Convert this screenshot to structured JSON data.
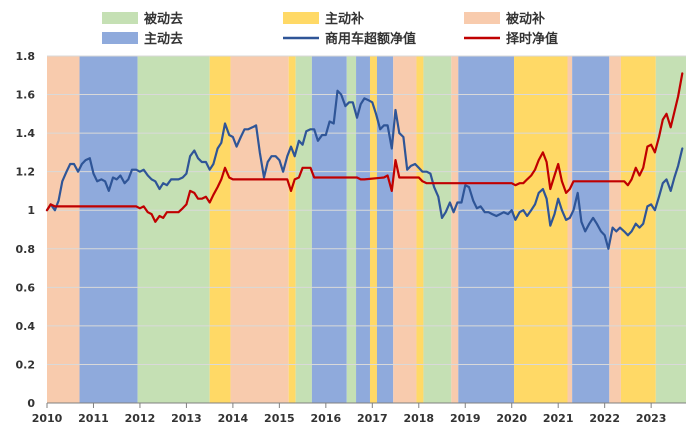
{
  "chart_data": {
    "type": "line",
    "title": "",
    "xlabel": "",
    "ylabel": "",
    "ylim": [
      0,
      1.8
    ],
    "xlim": [
      2010.0,
      2023.75
    ],
    "y_ticks": [
      "0",
      "0.2",
      "0.4",
      "0.6",
      "0.8",
      "1",
      "1.2",
      "1.4",
      "1.6",
      "1.8"
    ],
    "x_ticks": [
      "2010",
      "2011",
      "2012",
      "2013",
      "2014",
      "2015",
      "2016",
      "2017",
      "2018",
      "2019",
      "2020",
      "2021",
      "2022",
      "2023"
    ],
    "grid": true,
    "legend": [
      {
        "label": "被动去",
        "kind": "area",
        "color": "#c5e0b4"
      },
      {
        "label": "主动补",
        "kind": "area",
        "color": "#ffd966"
      },
      {
        "label": "被动补",
        "kind": "area",
        "color": "#f8cbad"
      },
      {
        "label": "主动去",
        "kind": "area",
        "color": "#8faadc"
      },
      {
        "label": "商用车超额净值",
        "kind": "line",
        "color": "#2f5597"
      },
      {
        "label": "择时净值",
        "kind": "line",
        "color": "#c00000"
      }
    ],
    "phases": [
      {
        "phase": "被动补",
        "start": 2010.0,
        "end": 2010.7
      },
      {
        "phase": "主动去",
        "start": 2010.7,
        "end": 2011.95
      },
      {
        "phase": "被动去",
        "start": 2011.95,
        "end": 2013.5
      },
      {
        "phase": "主动补",
        "start": 2013.5,
        "end": 2013.95
      },
      {
        "phase": "被动补",
        "start": 2013.95,
        "end": 2015.2
      },
      {
        "phase": "主动补",
        "start": 2015.2,
        "end": 2015.35
      },
      {
        "phase": "被动去",
        "start": 2015.35,
        "end": 2015.7
      },
      {
        "phase": "主动去",
        "start": 2015.7,
        "end": 2016.45
      },
      {
        "phase": "被动去",
        "start": 2016.45,
        "end": 2016.65
      },
      {
        "phase": "主动去",
        "start": 2016.65,
        "end": 2016.95
      },
      {
        "phase": "主动补",
        "start": 2016.95,
        "end": 2017.1
      },
      {
        "phase": "主动去",
        "start": 2017.1,
        "end": 2017.45
      },
      {
        "phase": "被动补",
        "start": 2017.45,
        "end": 2017.95
      },
      {
        "phase": "主动补",
        "start": 2017.95,
        "end": 2018.1
      },
      {
        "phase": "被动去",
        "start": 2018.1,
        "end": 2018.7
      },
      {
        "phase": "被动补",
        "start": 2018.7,
        "end": 2018.85
      },
      {
        "phase": "主动去",
        "start": 2018.85,
        "end": 2020.05
      },
      {
        "phase": "主动补",
        "start": 2020.05,
        "end": 2021.2
      },
      {
        "phase": "被动补",
        "start": 2021.2,
        "end": 2021.3
      },
      {
        "phase": "主动去",
        "start": 2021.3,
        "end": 2022.1
      },
      {
        "phase": "被动补",
        "start": 2022.1,
        "end": 2022.35
      },
      {
        "phase": "主动补",
        "start": 2022.35,
        "end": 2023.1
      },
      {
        "phase": "被动去",
        "start": 2023.1,
        "end": 2023.75
      }
    ],
    "series": [
      {
        "name": "商用车超额净值",
        "color": "#2f5597",
        "points": [
          [
            2010.0,
            1.0
          ],
          [
            2010.08,
            1.03
          ],
          [
            2010.17,
            1.0
          ],
          [
            2010.25,
            1.05
          ],
          [
            2010.33,
            1.15
          ],
          [
            2010.42,
            1.2
          ],
          [
            2010.5,
            1.24
          ],
          [
            2010.58,
            1.24
          ],
          [
            2010.67,
            1.2
          ],
          [
            2010.75,
            1.24
          ],
          [
            2010.83,
            1.26
          ],
          [
            2010.92,
            1.27
          ],
          [
            2011.0,
            1.19
          ],
          [
            2011.08,
            1.15
          ],
          [
            2011.17,
            1.16
          ],
          [
            2011.25,
            1.15
          ],
          [
            2011.33,
            1.1
          ],
          [
            2011.42,
            1.17
          ],
          [
            2011.5,
            1.16
          ],
          [
            2011.58,
            1.18
          ],
          [
            2011.67,
            1.14
          ],
          [
            2011.75,
            1.16
          ],
          [
            2011.83,
            1.21
          ],
          [
            2011.92,
            1.21
          ],
          [
            2012.0,
            1.2
          ],
          [
            2012.08,
            1.21
          ],
          [
            2012.17,
            1.18
          ],
          [
            2012.25,
            1.16
          ],
          [
            2012.33,
            1.15
          ],
          [
            2012.42,
            1.11
          ],
          [
            2012.5,
            1.14
          ],
          [
            2012.58,
            1.13
          ],
          [
            2012.67,
            1.16
          ],
          [
            2012.75,
            1.16
          ],
          [
            2012.83,
            1.16
          ],
          [
            2012.92,
            1.17
          ],
          [
            2013.0,
            1.19
          ],
          [
            2013.08,
            1.28
          ],
          [
            2013.17,
            1.31
          ],
          [
            2013.25,
            1.27
          ],
          [
            2013.33,
            1.25
          ],
          [
            2013.42,
            1.25
          ],
          [
            2013.5,
            1.21
          ],
          [
            2013.58,
            1.24
          ],
          [
            2013.67,
            1.32
          ],
          [
            2013.75,
            1.35
          ],
          [
            2013.83,
            1.45
          ],
          [
            2013.92,
            1.39
          ],
          [
            2014.0,
            1.38
          ],
          [
            2014.08,
            1.33
          ],
          [
            2014.17,
            1.38
          ],
          [
            2014.25,
            1.42
          ],
          [
            2014.33,
            1.42
          ],
          [
            2014.42,
            1.43
          ],
          [
            2014.5,
            1.44
          ],
          [
            2014.58,
            1.3
          ],
          [
            2014.67,
            1.17
          ],
          [
            2014.75,
            1.25
          ],
          [
            2014.83,
            1.28
          ],
          [
            2014.92,
            1.28
          ],
          [
            2015.0,
            1.26
          ],
          [
            2015.08,
            1.2
          ],
          [
            2015.17,
            1.28
          ],
          [
            2015.25,
            1.33
          ],
          [
            2015.33,
            1.28
          ],
          [
            2015.42,
            1.36
          ],
          [
            2015.5,
            1.34
          ],
          [
            2015.58,
            1.41
          ],
          [
            2015.67,
            1.42
          ],
          [
            2015.75,
            1.42
          ],
          [
            2015.83,
            1.36
          ],
          [
            2015.92,
            1.39
          ],
          [
            2016.0,
            1.39
          ],
          [
            2016.08,
            1.46
          ],
          [
            2016.17,
            1.45
          ],
          [
            2016.25,
            1.62
          ],
          [
            2016.33,
            1.6
          ],
          [
            2016.42,
            1.54
          ],
          [
            2016.5,
            1.56
          ],
          [
            2016.58,
            1.56
          ],
          [
            2016.67,
            1.48
          ],
          [
            2016.75,
            1.55
          ],
          [
            2016.83,
            1.58
          ],
          [
            2016.92,
            1.57
          ],
          [
            2017.0,
            1.56
          ],
          [
            2017.08,
            1.5
          ],
          [
            2017.17,
            1.42
          ],
          [
            2017.25,
            1.44
          ],
          [
            2017.33,
            1.44
          ],
          [
            2017.42,
            1.32
          ],
          [
            2017.5,
            1.52
          ],
          [
            2017.58,
            1.4
          ],
          [
            2017.67,
            1.38
          ],
          [
            2017.75,
            1.21
          ],
          [
            2017.83,
            1.23
          ],
          [
            2017.92,
            1.24
          ],
          [
            2018.0,
            1.22
          ],
          [
            2018.08,
            1.2
          ],
          [
            2018.17,
            1.2
          ],
          [
            2018.25,
            1.19
          ],
          [
            2018.33,
            1.12
          ],
          [
            2018.42,
            1.07
          ],
          [
            2018.5,
            0.96
          ],
          [
            2018.58,
            0.99
          ],
          [
            2018.67,
            1.04
          ],
          [
            2018.75,
            0.99
          ],
          [
            2018.83,
            1.04
          ],
          [
            2018.92,
            1.04
          ],
          [
            2019.0,
            1.13
          ],
          [
            2019.08,
            1.12
          ],
          [
            2019.17,
            1.05
          ],
          [
            2019.25,
            1.01
          ],
          [
            2019.33,
            1.02
          ],
          [
            2019.42,
            0.99
          ],
          [
            2019.5,
            0.99
          ],
          [
            2019.58,
            0.98
          ],
          [
            2019.67,
            0.97
          ],
          [
            2019.75,
            0.98
          ],
          [
            2019.83,
            0.99
          ],
          [
            2019.92,
            0.98
          ],
          [
            2020.0,
            1.0
          ],
          [
            2020.08,
            0.95
          ],
          [
            2020.17,
            0.99
          ],
          [
            2020.25,
            1.0
          ],
          [
            2020.33,
            0.97
          ],
          [
            2020.42,
            1.0
          ],
          [
            2020.5,
            1.03
          ],
          [
            2020.58,
            1.09
          ],
          [
            2020.67,
            1.11
          ],
          [
            2020.75,
            1.06
          ],
          [
            2020.83,
            0.92
          ],
          [
            2020.92,
            0.98
          ],
          [
            2021.0,
            1.06
          ],
          [
            2021.08,
            1.0
          ],
          [
            2021.17,
            0.95
          ],
          [
            2021.25,
            0.96
          ],
          [
            2021.33,
            1.0
          ],
          [
            2021.42,
            1.09
          ],
          [
            2021.5,
            0.94
          ],
          [
            2021.58,
            0.89
          ],
          [
            2021.67,
            0.93
          ],
          [
            2021.75,
            0.96
          ],
          [
            2021.83,
            0.93
          ],
          [
            2021.92,
            0.89
          ],
          [
            2022.0,
            0.87
          ],
          [
            2022.08,
            0.8
          ],
          [
            2022.17,
            0.91
          ],
          [
            2022.25,
            0.89
          ],
          [
            2022.33,
            0.91
          ],
          [
            2022.42,
            0.89
          ],
          [
            2022.5,
            0.87
          ],
          [
            2022.58,
            0.89
          ],
          [
            2022.67,
            0.93
          ],
          [
            2022.75,
            0.91
          ],
          [
            2022.83,
            0.93
          ],
          [
            2022.92,
            1.02
          ],
          [
            2023.0,
            1.03
          ],
          [
            2023.08,
            1.0
          ],
          [
            2023.17,
            1.07
          ],
          [
            2023.25,
            1.14
          ],
          [
            2023.33,
            1.16
          ],
          [
            2023.42,
            1.1
          ],
          [
            2023.5,
            1.17
          ],
          [
            2023.58,
            1.23
          ],
          [
            2023.67,
            1.32
          ]
        ]
      },
      {
        "name": "择时净值",
        "color": "#c00000",
        "points": [
          [
            2010.0,
            1.0
          ],
          [
            2010.08,
            1.03
          ],
          [
            2010.17,
            1.02
          ],
          [
            2011.92,
            1.02
          ],
          [
            2012.0,
            1.01
          ],
          [
            2012.08,
            1.02
          ],
          [
            2012.17,
            0.99
          ],
          [
            2012.25,
            0.98
          ],
          [
            2012.33,
            0.94
          ],
          [
            2012.42,
            0.97
          ],
          [
            2012.5,
            0.96
          ],
          [
            2012.58,
            0.99
          ],
          [
            2012.67,
            0.99
          ],
          [
            2012.75,
            0.99
          ],
          [
            2012.83,
            0.99
          ],
          [
            2012.92,
            1.01
          ],
          [
            2013.0,
            1.03
          ],
          [
            2013.08,
            1.1
          ],
          [
            2013.17,
            1.09
          ],
          [
            2013.25,
            1.06
          ],
          [
            2013.33,
            1.06
          ],
          [
            2013.42,
            1.07
          ],
          [
            2013.5,
            1.04
          ],
          [
            2013.58,
            1.08
          ],
          [
            2013.67,
            1.12
          ],
          [
            2013.75,
            1.16
          ],
          [
            2013.83,
            1.22
          ],
          [
            2013.92,
            1.17
          ],
          [
            2014.0,
            1.16
          ],
          [
            2015.17,
            1.16
          ],
          [
            2015.25,
            1.1
          ],
          [
            2015.33,
            1.16
          ],
          [
            2015.42,
            1.17
          ],
          [
            2015.5,
            1.22
          ],
          [
            2015.58,
            1.22
          ],
          [
            2015.67,
            1.22
          ],
          [
            2015.75,
            1.17
          ],
          [
            2016.67,
            1.17
          ],
          [
            2016.75,
            1.16
          ],
          [
            2016.83,
            1.16
          ],
          [
            2017.25,
            1.17
          ],
          [
            2017.33,
            1.18
          ],
          [
            2017.42,
            1.1
          ],
          [
            2017.5,
            1.26
          ],
          [
            2017.58,
            1.17
          ],
          [
            2017.67,
            1.17
          ],
          [
            2018.0,
            1.17
          ],
          [
            2018.08,
            1.15
          ],
          [
            2018.17,
            1.14
          ],
          [
            2020.0,
            1.14
          ],
          [
            2020.08,
            1.13
          ],
          [
            2020.17,
            1.14
          ],
          [
            2020.25,
            1.14
          ],
          [
            2020.33,
            1.16
          ],
          [
            2020.42,
            1.18
          ],
          [
            2020.5,
            1.21
          ],
          [
            2020.58,
            1.26
          ],
          [
            2020.67,
            1.3
          ],
          [
            2020.75,
            1.25
          ],
          [
            2020.83,
            1.11
          ],
          [
            2020.92,
            1.18
          ],
          [
            2021.0,
            1.24
          ],
          [
            2021.08,
            1.15
          ],
          [
            2021.17,
            1.09
          ],
          [
            2021.25,
            1.11
          ],
          [
            2021.33,
            1.15
          ],
          [
            2022.33,
            1.15
          ],
          [
            2022.42,
            1.15
          ],
          [
            2022.5,
            1.13
          ],
          [
            2022.58,
            1.16
          ],
          [
            2022.67,
            1.22
          ],
          [
            2022.75,
            1.18
          ],
          [
            2022.83,
            1.22
          ],
          [
            2022.92,
            1.33
          ],
          [
            2023.0,
            1.34
          ],
          [
            2023.08,
            1.3
          ],
          [
            2023.17,
            1.38
          ],
          [
            2023.25,
            1.47
          ],
          [
            2023.33,
            1.5
          ],
          [
            2023.42,
            1.43
          ],
          [
            2023.5,
            1.51
          ],
          [
            2023.58,
            1.59
          ],
          [
            2023.67,
            1.71
          ]
        ]
      }
    ]
  }
}
